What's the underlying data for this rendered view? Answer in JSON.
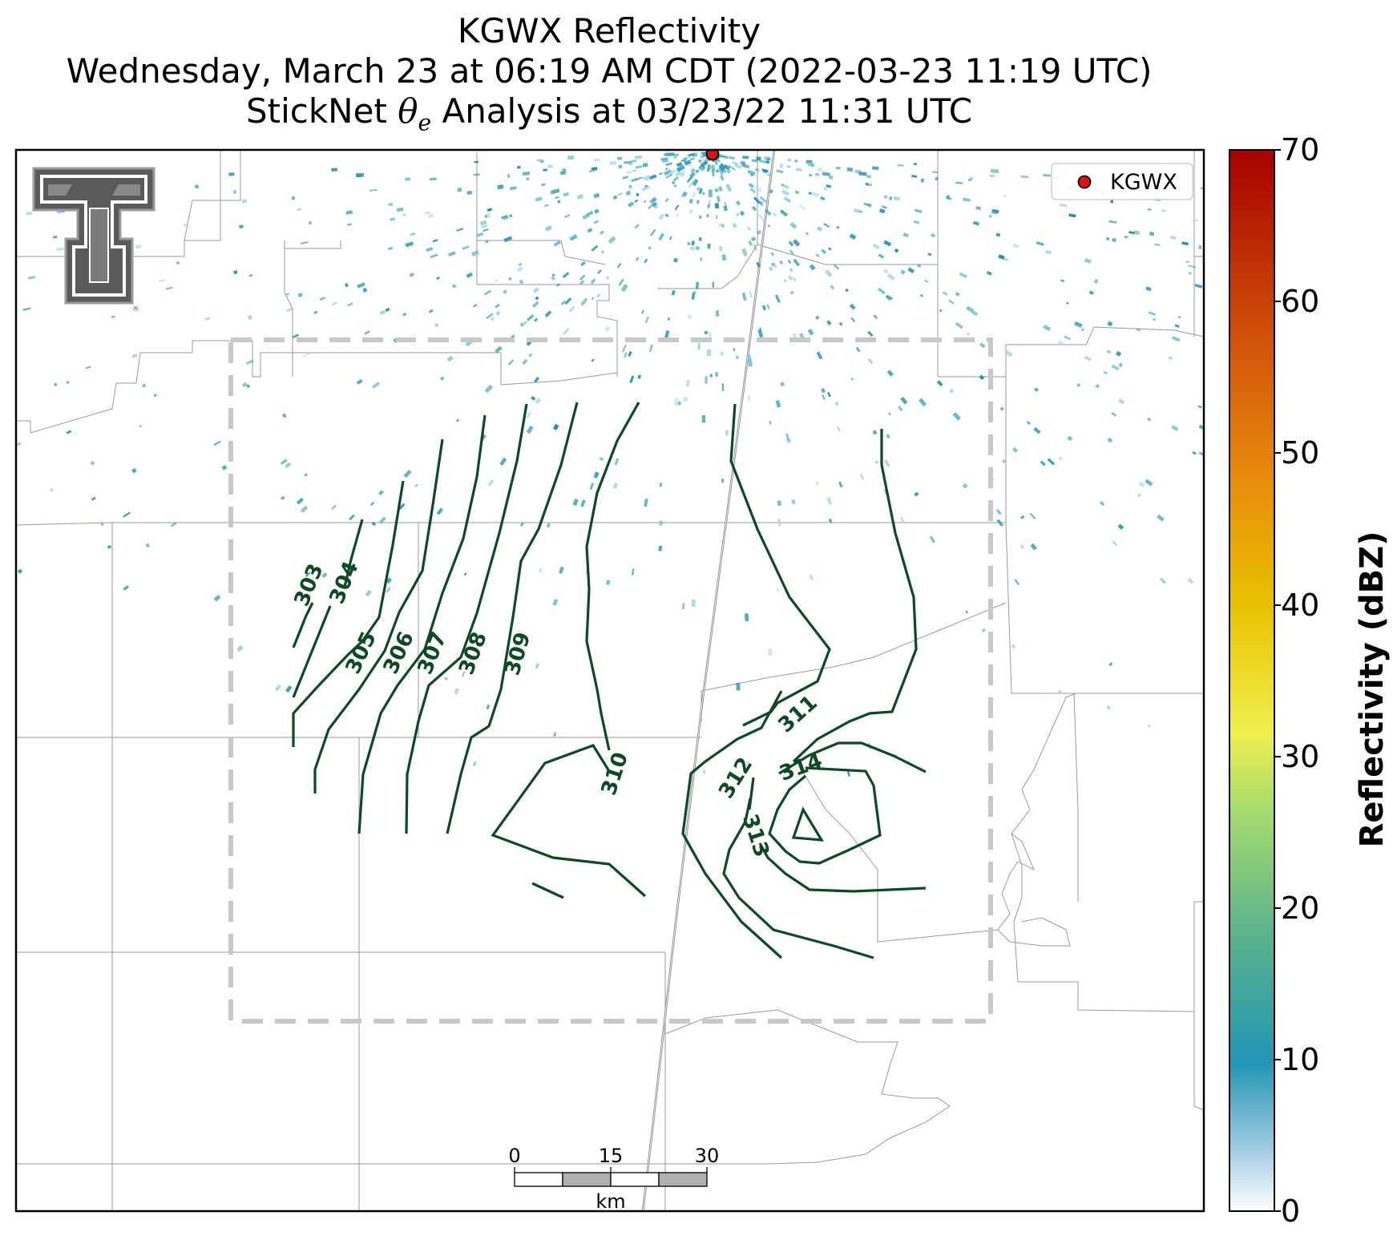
{
  "title": {
    "line1": "KGWX Reflectivity",
    "line2": "Wednesday, March 23 at 06:19 AM CDT (2022-03-23 11:19 UTC)",
    "line3_prefix": "StickNet ",
    "line3_symbol": "θ",
    "line3_subscript": "e",
    "line3_suffix": " Analysis at 03/23/22 11:31 UTC"
  },
  "legend": {
    "label": "KGWX"
  },
  "colorbar": {
    "label": "Reflectivity (dBZ)",
    "ticks": [
      "0",
      "10",
      "20",
      "30",
      "40",
      "50",
      "60",
      "70"
    ],
    "colors": [
      "#ffffff",
      "#9ecae1",
      "#2196b4",
      "#55b08f",
      "#a8dc6e",
      "#f0f04e",
      "#e8c200",
      "#e8900a",
      "#d2520a",
      "#a60000"
    ]
  },
  "contours": {
    "color": "#0b4a22",
    "labels": [
      "303",
      "304",
      "305",
      "306",
      "307",
      "308",
      "309",
      "310",
      "311",
      "312",
      "313",
      "314"
    ]
  },
  "scalebar": {
    "ticks": [
      "0",
      "15",
      "30"
    ],
    "unit": "km"
  },
  "radar_site_color": "#e01010",
  "analysis_box_color": "#c8c8c8"
}
